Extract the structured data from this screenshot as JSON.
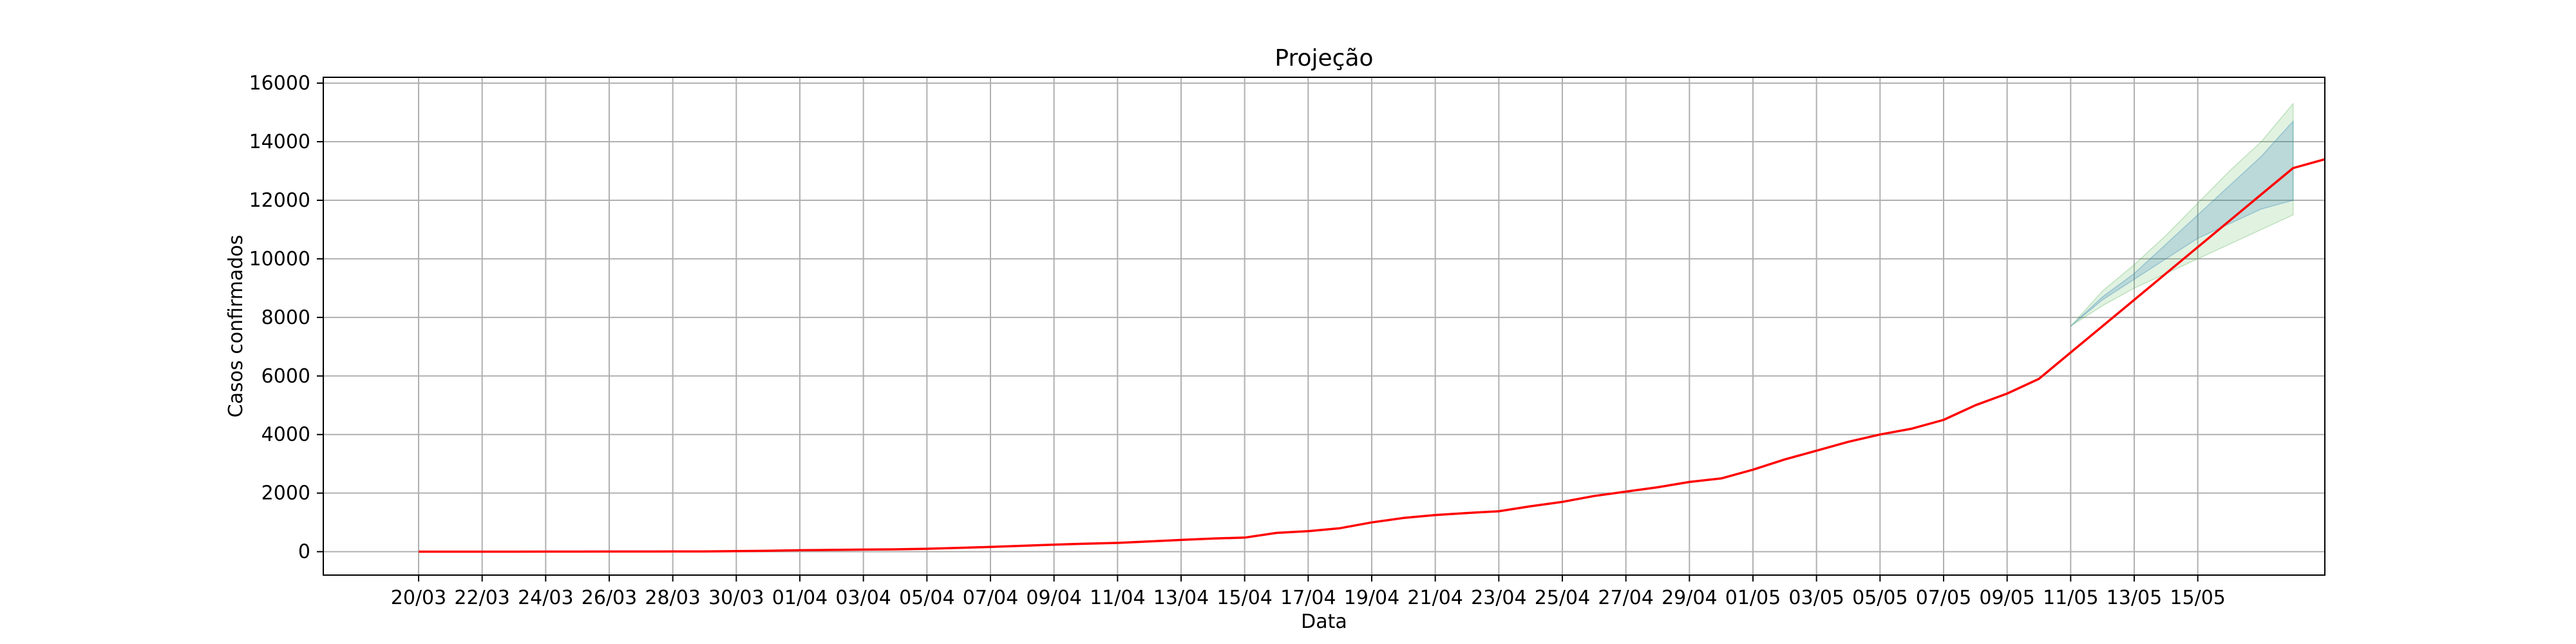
{
  "chart_data": {
    "type": "line",
    "title": "Projeção",
    "xlabel": "Data",
    "ylabel": "Casos confirmados",
    "grid": true,
    "legend": "none",
    "ylim": [
      -800,
      16200
    ],
    "yticks": [
      0,
      2000,
      4000,
      6000,
      8000,
      10000,
      12000,
      14000,
      16000
    ],
    "xtick_labels": [
      "20/03",
      "22/03",
      "24/03",
      "26/03",
      "28/03",
      "30/03",
      "01/04",
      "03/04",
      "05/04",
      "07/04",
      "09/04",
      "11/04",
      "13/04",
      "15/04",
      "17/04",
      "19/04",
      "21/04",
      "23/04",
      "25/04",
      "27/04",
      "29/04",
      "01/05",
      "03/05",
      "05/05",
      "07/05",
      "09/05",
      "11/05",
      "13/05",
      "15/05"
    ],
    "x_index_range": [
      -3,
      60
    ],
    "series": [
      {
        "color": "#ff0000",
        "values": [
          0,
          0,
          1,
          1,
          2,
          3,
          4,
          6,
          8,
          10,
          20,
          30,
          50,
          60,
          70,
          80,
          100,
          130,
          160,
          200,
          240,
          270,
          300,
          350,
          400,
          450,
          480,
          640,
          700,
          800,
          1000,
          1150,
          1250,
          1320,
          1380,
          1550,
          1700,
          1900,
          2050,
          2200,
          2380,
          2500,
          2800,
          3150,
          3450,
          3750,
          4000,
          4200,
          4500,
          5000,
          5400,
          5900,
          6800,
          7700,
          8600,
          9500,
          10400,
          11300,
          12200,
          13100,
          13400
        ]
      }
    ],
    "confidence_bands": [
      {
        "color": "#2ca02c",
        "start_index": 52,
        "upper": [
          7700,
          8900,
          9800,
          10800,
          11900,
          13000,
          14000,
          15300
        ],
        "lower": [
          7700,
          8400,
          9000,
          9500,
          10000,
          10500,
          11000,
          11500
        ]
      },
      {
        "color": "#1f77b4",
        "start_index": 52,
        "upper": [
          7700,
          8700,
          9500,
          10500,
          11500,
          12500,
          13500,
          14700
        ],
        "lower": [
          7700,
          8600,
          9300,
          10000,
          10700,
          11200,
          11700,
          12000
        ]
      }
    ]
  }
}
